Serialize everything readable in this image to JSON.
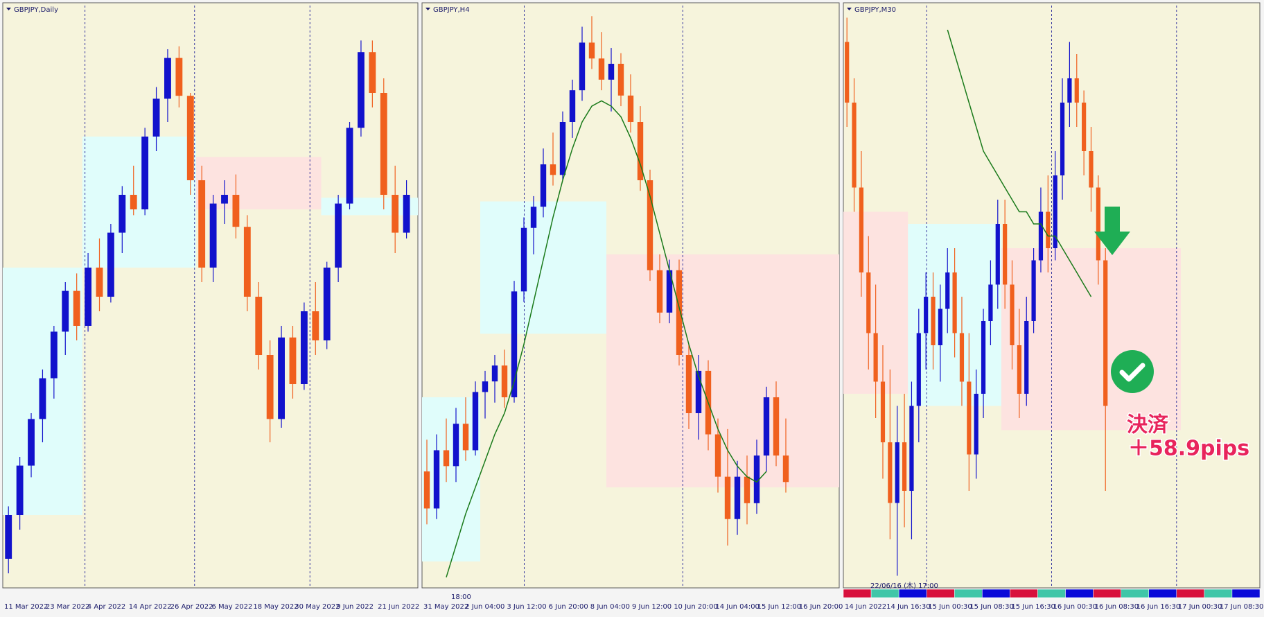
{
  "chart_data": [
    {
      "type": "candlestick",
      "title": "GBPJPY,Daily",
      "ylim": [
        150,
        170
      ],
      "bull_color": "#1212cc",
      "bear_color": "#f0601e",
      "ohlc": [
        [
          151.0,
          152.8,
          150.5,
          152.5
        ],
        [
          152.5,
          154.5,
          152.0,
          154.2
        ],
        [
          154.2,
          156.0,
          153.8,
          155.8
        ],
        [
          155.8,
          157.5,
          155.0,
          157.2
        ],
        [
          157.2,
          159.0,
          156.5,
          158.8
        ],
        [
          158.8,
          160.5,
          158.0,
          160.2
        ],
        [
          160.2,
          160.8,
          158.5,
          159.0
        ],
        [
          159.0,
          161.5,
          158.8,
          161.0
        ],
        [
          161.0,
          162.0,
          159.5,
          160.0
        ],
        [
          160.0,
          162.5,
          159.8,
          162.2
        ],
        [
          162.2,
          163.8,
          161.5,
          163.5
        ],
        [
          163.5,
          164.5,
          162.8,
          163.0
        ],
        [
          163.0,
          165.8,
          162.8,
          165.5
        ],
        [
          165.5,
          167.2,
          165.0,
          166.8
        ],
        [
          166.8,
          168.5,
          166.0,
          168.2
        ],
        [
          168.2,
          168.6,
          166.5,
          166.9
        ],
        [
          166.9,
          167.0,
          163.5,
          164.0
        ],
        [
          164.0,
          164.5,
          160.5,
          161.0
        ],
        [
          161.0,
          163.5,
          160.5,
          163.2
        ],
        [
          163.2,
          164.0,
          162.5,
          163.5
        ],
        [
          163.5,
          164.2,
          162.0,
          162.4
        ],
        [
          162.4,
          162.8,
          159.5,
          160.0
        ],
        [
          160.0,
          160.5,
          157.5,
          158.0
        ],
        [
          158.0,
          158.5,
          155.0,
          155.8
        ],
        [
          155.8,
          159.0,
          155.5,
          158.6
        ],
        [
          158.6,
          159.0,
          156.5,
          157.0
        ],
        [
          157.0,
          159.8,
          156.8,
          159.5
        ],
        [
          159.5,
          160.5,
          158.0,
          158.5
        ],
        [
          158.5,
          161.2,
          158.2,
          161.0
        ],
        [
          161.0,
          163.5,
          160.5,
          163.2
        ],
        [
          163.2,
          166.0,
          163.0,
          165.8
        ],
        [
          165.8,
          168.8,
          165.5,
          168.4
        ],
        [
          168.4,
          168.8,
          166.5,
          167.0
        ],
        [
          167.0,
          167.5,
          163.0,
          163.5
        ],
        [
          163.5,
          164.5,
          161.5,
          162.2
        ],
        [
          162.2,
          164.0,
          162.0,
          163.5
        ]
      ],
      "zones": [
        {
          "from": 0,
          "to": 6,
          "low": 152.5,
          "high": 161.0,
          "color": "#e0fdfb"
        },
        {
          "from": 7,
          "to": 16,
          "low": 161.0,
          "high": 165.5,
          "color": "#e0fdfb"
        },
        {
          "from": 17,
          "to": 27,
          "low": 163.0,
          "high": 164.8,
          "color": "#fde3e0"
        },
        {
          "from": 28,
          "to": 36,
          "low": 162.8,
          "high": 163.4,
          "color": "#e0fdfb"
        }
      ],
      "x_labels": [
        "11 Mar 2022",
        "23 Mar 2022",
        "4 Apr 2022",
        "14 Apr 2022",
        "26 Apr 2022",
        "6 May 2022",
        "18 May 2022",
        "30 May 2022",
        "9 Jun 2022",
        "21 Jun 2022"
      ]
    },
    {
      "type": "candlestick",
      "title": "GBPJPY,H4",
      "ylim": [
        159,
        170
      ],
      "bull_color": "#1212cc",
      "bear_color": "#f0601e",
      "ohlc": [
        [
          161.2,
          161.8,
          160.2,
          160.5
        ],
        [
          160.5,
          161.9,
          160.3,
          161.6
        ],
        [
          161.6,
          162.2,
          161.0,
          161.3
        ],
        [
          161.3,
          162.4,
          161.0,
          162.1
        ],
        [
          162.1,
          162.6,
          161.4,
          161.6
        ],
        [
          161.6,
          162.9,
          161.5,
          162.7
        ],
        [
          162.7,
          163.1,
          162.2,
          162.9
        ],
        [
          162.9,
          163.4,
          162.5,
          163.2
        ],
        [
          163.2,
          163.5,
          162.4,
          162.6
        ],
        [
          162.6,
          164.8,
          162.5,
          164.6
        ],
        [
          164.6,
          166.0,
          164.4,
          165.8
        ],
        [
          165.8,
          166.4,
          165.3,
          166.2
        ],
        [
          166.2,
          167.3,
          166.0,
          167.0
        ],
        [
          167.0,
          167.6,
          166.6,
          166.8
        ],
        [
          166.8,
          168.0,
          166.7,
          167.8
        ],
        [
          167.8,
          168.6,
          167.5,
          168.4
        ],
        [
          168.4,
          169.6,
          168.2,
          169.3
        ],
        [
          169.3,
          169.8,
          168.8,
          169.0
        ],
        [
          169.0,
          169.5,
          168.4,
          168.6
        ],
        [
          168.6,
          169.2,
          168.0,
          168.9
        ],
        [
          168.9,
          169.1,
          168.1,
          168.3
        ],
        [
          168.3,
          168.7,
          167.6,
          167.8
        ],
        [
          167.8,
          168.1,
          166.5,
          166.7
        ],
        [
          166.7,
          166.9,
          164.8,
          165.0
        ],
        [
          165.0,
          165.3,
          164.0,
          164.2
        ],
        [
          164.2,
          165.2,
          164.0,
          165.0
        ],
        [
          165.0,
          165.2,
          163.2,
          163.4
        ],
        [
          163.4,
          163.6,
          162.0,
          162.3
        ],
        [
          162.3,
          163.4,
          161.8,
          163.1
        ],
        [
          163.1,
          163.3,
          161.6,
          161.9
        ],
        [
          161.9,
          162.2,
          160.8,
          161.1
        ],
        [
          161.1,
          162.0,
          159.8,
          160.3
        ],
        [
          160.3,
          161.4,
          160.0,
          161.1
        ],
        [
          161.1,
          161.5,
          160.2,
          160.6
        ],
        [
          160.6,
          161.8,
          160.4,
          161.5
        ],
        [
          161.5,
          162.8,
          161.2,
          162.6
        ],
        [
          162.6,
          162.9,
          161.3,
          161.5
        ],
        [
          161.5,
          162.2,
          160.8,
          161.0
        ]
      ],
      "ma": {
        "color": "#1a7a1a",
        "values": [
          null,
          null,
          159.2,
          159.8,
          160.4,
          160.9,
          161.4,
          161.9,
          162.3,
          162.9,
          163.6,
          164.4,
          165.2,
          166.0,
          166.7,
          167.3,
          167.8,
          168.1,
          168.2,
          168.1,
          167.9,
          167.5,
          167.0,
          166.4,
          165.7,
          165.0,
          164.3,
          163.6,
          163.0,
          162.5,
          162.0,
          161.6,
          161.3,
          161.1,
          161.0,
          161.2,
          null,
          null
        ]
      },
      "zones": [
        {
          "from": 0,
          "to": 5,
          "low": 159.5,
          "high": 162.6,
          "color": "#e0fdfb"
        },
        {
          "from": 6,
          "to": 18,
          "low": 163.8,
          "high": 166.3,
          "color": "#e0fdfb"
        },
        {
          "from": 19,
          "to": 43,
          "low": 160.9,
          "high": 165.3,
          "color": "#fde3e0"
        }
      ],
      "time_label": "18:00",
      "x_labels": [
        "31 May 2022",
        "2 Jun 04:00",
        "3 Jun 12:00",
        "6 Jun 20:00",
        "8 Jun 04:00",
        "9 Jun 12:00",
        "10 Jun 20:00",
        "14 Jun 04:00",
        "15 Jun 12:00",
        "16 Jun 20:00"
      ]
    },
    {
      "type": "candlestick",
      "title": "GBPJPY,M30",
      "ylim": [
        160.8,
        165.6
      ],
      "bull_color": "#1212cc",
      "bear_color": "#f0601e",
      "ohlc": [
        [
          165.3,
          165.5,
          164.6,
          164.8
        ],
        [
          164.8,
          165.0,
          163.9,
          164.1
        ],
        [
          164.1,
          164.4,
          163.2,
          163.4
        ],
        [
          163.4,
          163.7,
          162.6,
          162.9
        ],
        [
          162.9,
          163.3,
          162.2,
          162.5
        ],
        [
          162.5,
          162.8,
          161.7,
          162.0
        ],
        [
          162.0,
          162.6,
          161.2,
          161.5
        ],
        [
          161.5,
          162.3,
          160.9,
          162.0
        ],
        [
          162.0,
          162.4,
          161.3,
          161.6
        ],
        [
          161.6,
          162.5,
          161.2,
          162.3
        ],
        [
          162.3,
          163.1,
          162.0,
          162.9
        ],
        [
          162.9,
          163.4,
          162.6,
          163.2
        ],
        [
          163.2,
          163.4,
          162.6,
          162.8
        ],
        [
          162.8,
          163.3,
          162.5,
          163.1
        ],
        [
          163.1,
          163.6,
          162.9,
          163.4
        ],
        [
          163.4,
          163.6,
          162.7,
          162.9
        ],
        [
          162.9,
          163.2,
          162.3,
          162.5
        ],
        [
          162.5,
          162.9,
          161.6,
          161.9
        ],
        [
          161.9,
          162.6,
          161.7,
          162.4
        ],
        [
          162.4,
          163.1,
          162.2,
          163.0
        ],
        [
          163.0,
          163.5,
          162.8,
          163.3
        ],
        [
          163.3,
          164.0,
          163.1,
          163.8
        ],
        [
          163.8,
          164.0,
          163.1,
          163.3
        ],
        [
          163.3,
          163.5,
          162.6,
          162.8
        ],
        [
          162.8,
          163.1,
          162.2,
          162.4
        ],
        [
          162.4,
          163.2,
          162.3,
          163.0
        ],
        [
          163.0,
          163.6,
          162.9,
          163.5
        ],
        [
          163.5,
          164.1,
          163.4,
          163.9
        ],
        [
          163.9,
          164.2,
          163.4,
          163.6
        ],
        [
          163.6,
          164.4,
          163.5,
          164.2
        ],
        [
          164.2,
          165.0,
          164.0,
          164.8
        ],
        [
          164.8,
          165.3,
          164.6,
          165.0
        ],
        [
          165.0,
          165.2,
          164.6,
          164.8
        ],
        [
          164.8,
          164.9,
          164.2,
          164.4
        ],
        [
          164.4,
          164.6,
          163.9,
          164.1
        ],
        [
          164.1,
          164.2,
          163.3,
          163.5
        ],
        [
          163.5,
          163.6,
          161.6,
          162.3
        ]
      ],
      "ma": {
        "color": "#1a7a1a",
        "values": [
          null,
          null,
          null,
          null,
          null,
          null,
          null,
          null,
          null,
          null,
          null,
          null,
          null,
          null,
          165.4,
          165.2,
          165.0,
          164.8,
          164.6,
          164.4,
          164.3,
          164.2,
          164.1,
          164.0,
          163.9,
          163.9,
          163.8,
          163.8,
          163.7,
          163.7,
          163.6,
          163.5,
          163.4,
          163.3,
          163.2,
          null,
          null
        ]
      },
      "zones": [
        {
          "from": 0,
          "to": 8,
          "low": 162.4,
          "high": 163.9,
          "color": "#fde3e0"
        },
        {
          "from": 9,
          "to": 21,
          "low": 162.3,
          "high": 163.8,
          "color": "#e0fdfb"
        },
        {
          "from": 22,
          "to": 46,
          "low": 162.1,
          "high": 163.6,
          "color": "#fde3e0"
        }
      ],
      "time_label": "22/06/16 (木) 17:00",
      "annotations": [
        "決済",
        "＋58.9pips"
      ],
      "x_labels": [
        "14 Jun 2022",
        "14 Jun 16:30",
        "15 Jun 00:30",
        "15 Jun 08:30",
        "15 Jun 16:30",
        "16 Jun 00:30",
        "16 Jun 08:30",
        "16 Jun 16:30",
        "17 Jun 00:30",
        "17 Jun 08:30"
      ]
    }
  ]
}
